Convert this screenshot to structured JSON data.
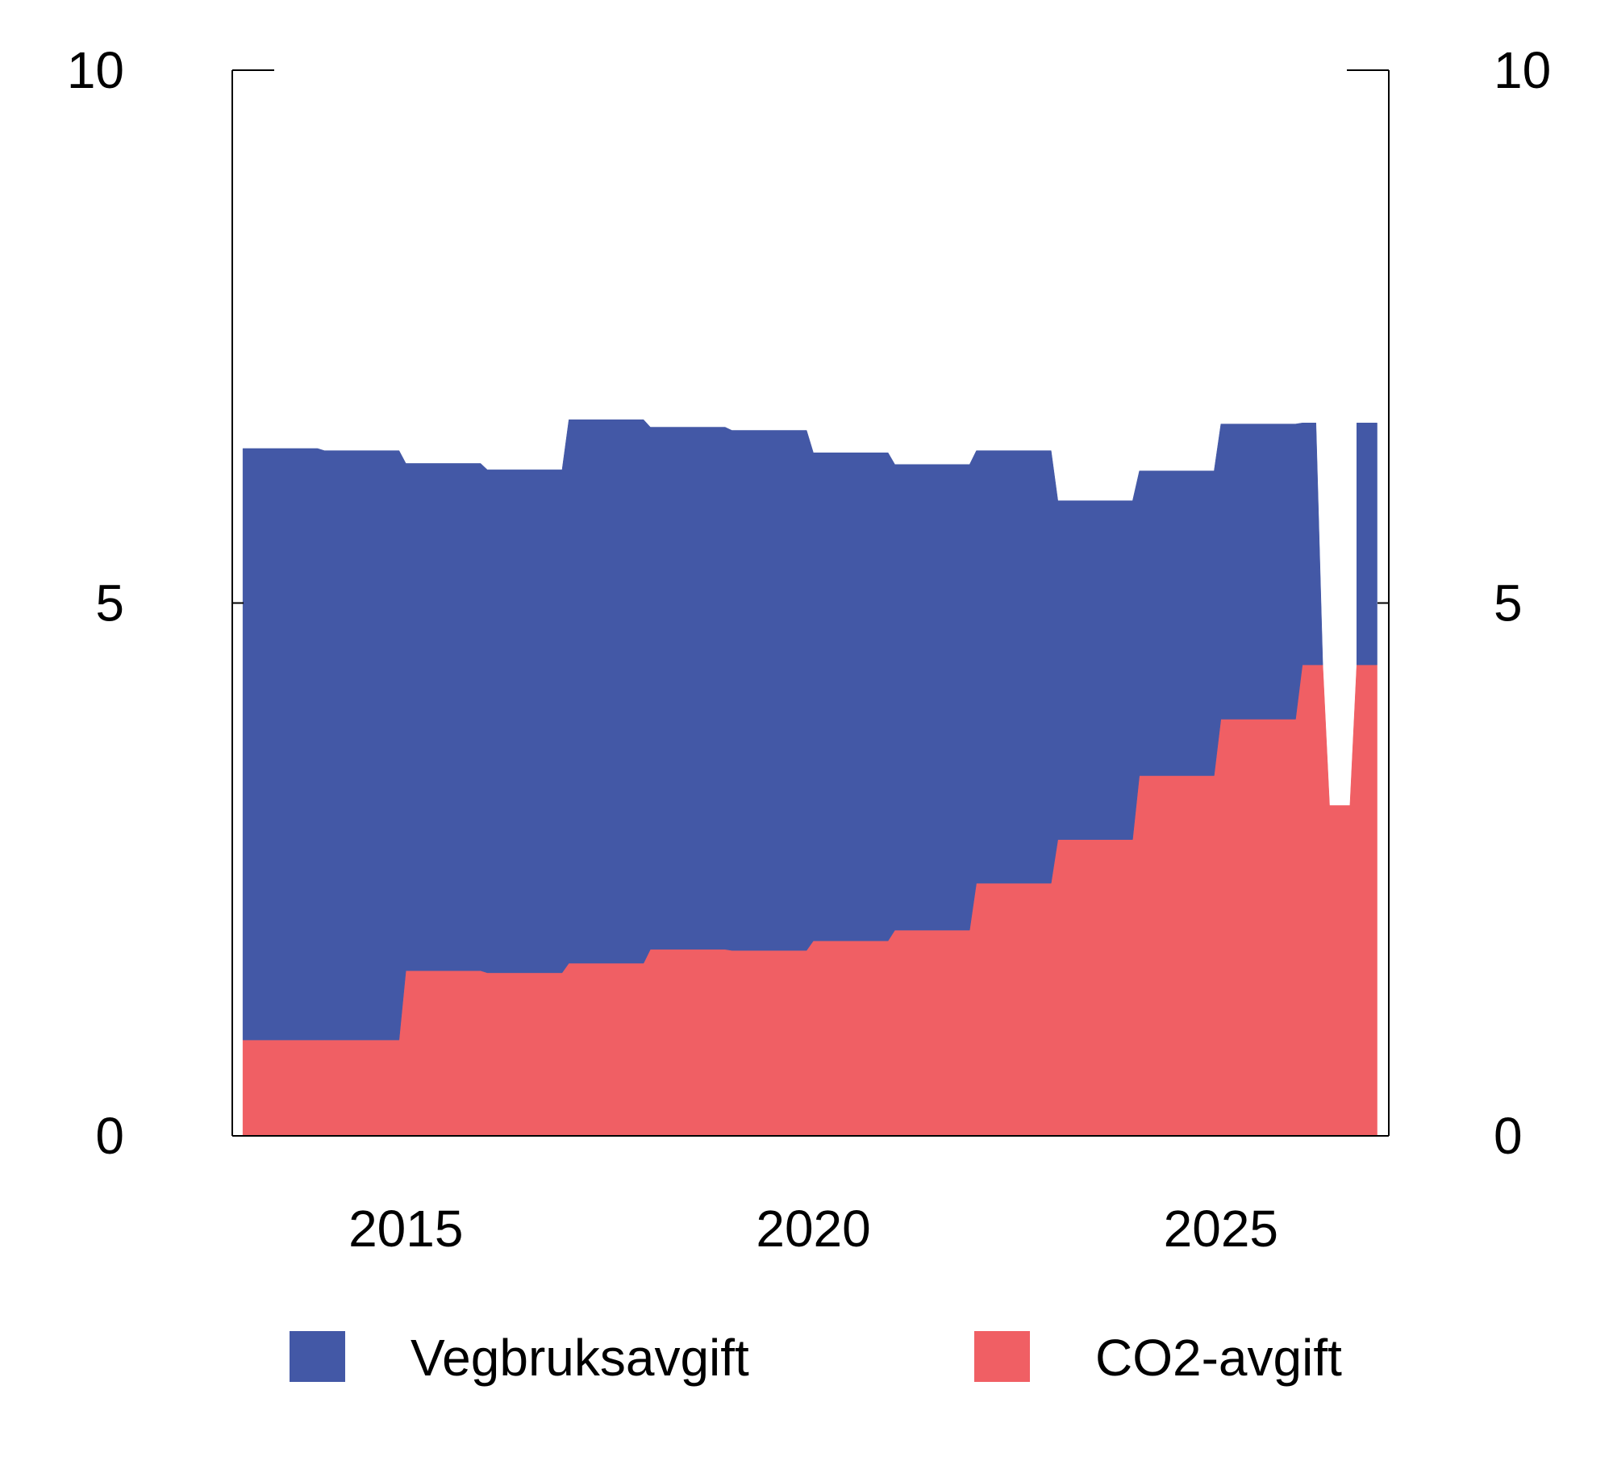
{
  "chart_data": {
    "type": "stacked_area",
    "x": [
      2013,
      2013.9167,
      2014,
      2014.9167,
      2015,
      2015.9167,
      2016,
      2016.9167,
      2017,
      2017.9167,
      2018,
      2018.9167,
      2019,
      2019.9167,
      2020,
      2020.9167,
      2021,
      2021.9167,
      2022,
      2022.9167,
      2023,
      2023.9167,
      2024,
      2024.9167,
      2025,
      2025.9167,
      2026,
      2026.1667,
      2026.25,
      2026.3333,
      2026.5833,
      2026.6667,
      2026.9167
    ],
    "series": [
      {
        "name": "Vegbruksavgift",
        "color": "#4358a6",
        "values": [
          5.55,
          5.55,
          5.53,
          5.53,
          4.76,
          4.76,
          4.72,
          4.72,
          5.1,
          5.1,
          4.9,
          4.9,
          4.88,
          4.88,
          4.58,
          4.58,
          4.37,
          4.37,
          4.06,
          4.06,
          3.18,
          3.18,
          2.86,
          2.86,
          2.77,
          2.77,
          2.27,
          2.27,
          0,
          null,
          null,
          2.27,
          2.27
        ]
      },
      {
        "name": "CO2-avgift",
        "color": "#f05f64",
        "values": [
          0.9,
          0.9,
          0.9,
          0.9,
          1.55,
          1.55,
          1.53,
          1.53,
          1.62,
          1.62,
          1.75,
          1.75,
          1.74,
          1.74,
          1.83,
          1.83,
          1.93,
          1.93,
          2.37,
          2.37,
          2.78,
          2.78,
          3.38,
          3.38,
          3.91,
          3.91,
          4.42,
          4.42,
          4.42,
          3.1,
          3.1,
          4.42,
          4.42
        ]
      }
    ],
    "xlim": [
      2012.87,
      2027.06
    ],
    "xticks": [
      2015,
      2020,
      2025
    ],
    "ylim": [
      0,
      10
    ],
    "yticks": [
      0,
      5,
      10
    ],
    "y2lim": [
      0,
      10
    ],
    "y2ticks": [
      0,
      5,
      10
    ],
    "legend": "bottom"
  }
}
